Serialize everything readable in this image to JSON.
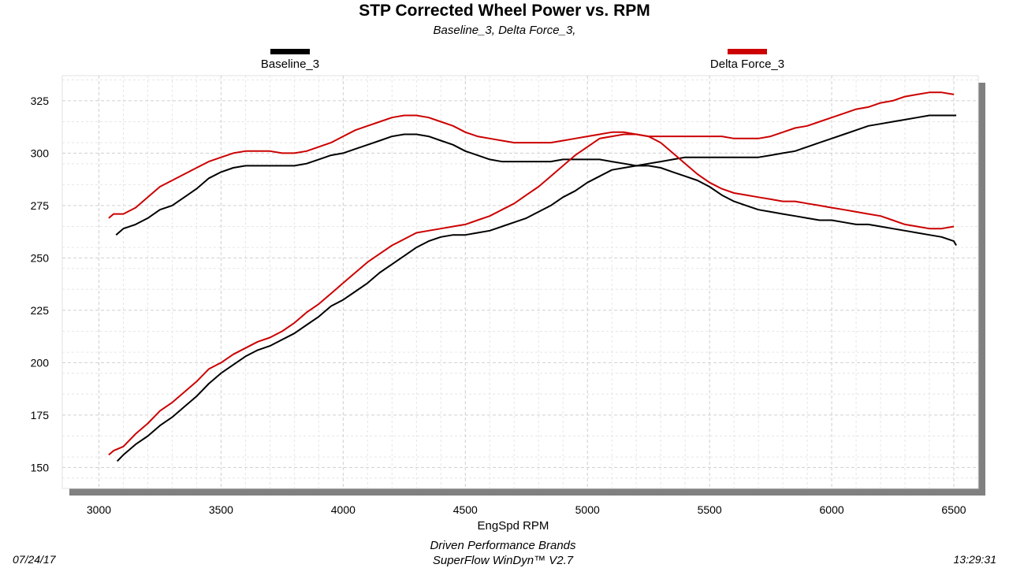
{
  "chart_data": {
    "type": "line",
    "title": "STP Corrected Wheel Power vs. RPM",
    "subtitle": "Baseline_3, Delta Force_3,",
    "xlabel": "EngSpd  RPM",
    "ylabel": "",
    "xlim": [
      2850,
      6600
    ],
    "ylim": [
      140,
      337
    ],
    "xticks": [
      "3000",
      "3500",
      "4000",
      "4500",
      "5000",
      "5500",
      "6000",
      "6500"
    ],
    "yticks": [
      "150",
      "175",
      "200",
      "225",
      "250",
      "275",
      "300",
      "325"
    ],
    "grid": true,
    "legend_position": "top",
    "series": [
      {
        "name": "Baseline_3",
        "measure": "power",
        "color": "#000000",
        "x": [
          3070,
          3100,
          3150,
          3200,
          3250,
          3300,
          3350,
          3400,
          3450,
          3500,
          3550,
          3600,
          3650,
          3700,
          3750,
          3800,
          3850,
          3900,
          3950,
          4000,
          4050,
          4100,
          4150,
          4200,
          4250,
          4300,
          4350,
          4400,
          4450,
          4500,
          4550,
          4600,
          4650,
          4700,
          4750,
          4800,
          4850,
          4900,
          4950,
          5000,
          5050,
          5100,
          5150,
          5200,
          5250,
          5300,
          5350,
          5400,
          5450,
          5500,
          5550,
          5600,
          5650,
          5700,
          5750,
          5800,
          5850,
          5900,
          5950,
          6000,
          6050,
          6100,
          6150,
          6200,
          6250,
          6300,
          6350,
          6400,
          6450,
          6500,
          6510
        ],
        "y": [
          261,
          264,
          266,
          269,
          273,
          275,
          279,
          283,
          288,
          291,
          293,
          294,
          294,
          294,
          294,
          294,
          295,
          297,
          299,
          300,
          302,
          304,
          306,
          308,
          309,
          309,
          308,
          306,
          304,
          301,
          299,
          297,
          296,
          296,
          296,
          296,
          296,
          297,
          297,
          297,
          297,
          296,
          295,
          294,
          295,
          296,
          297,
          298,
          298,
          298,
          298,
          298,
          298,
          298,
          299,
          300,
          301,
          303,
          305,
          307,
          309,
          311,
          313,
          314,
          315,
          316,
          317,
          318,
          318,
          318,
          318
        ]
      },
      {
        "name": "Delta Force_3",
        "measure": "power",
        "color": "#cc0000",
        "x": [
          3040,
          3060,
          3100,
          3150,
          3200,
          3250,
          3300,
          3350,
          3400,
          3450,
          3500,
          3550,
          3600,
          3650,
          3700,
          3750,
          3800,
          3850,
          3900,
          3950,
          4000,
          4050,
          4100,
          4150,
          4200,
          4250,
          4300,
          4350,
          4400,
          4450,
          4500,
          4550,
          4600,
          4650,
          4700,
          4750,
          4800,
          4850,
          4900,
          4950,
          5000,
          5050,
          5100,
          5150,
          5200,
          5250,
          5300,
          5350,
          5400,
          5450,
          5500,
          5550,
          5600,
          5650,
          5700,
          5750,
          5800,
          5850,
          5900,
          5950,
          6000,
          6050,
          6100,
          6150,
          6200,
          6250,
          6300,
          6350,
          6400,
          6450,
          6500
        ],
        "y": [
          269,
          271,
          271,
          274,
          279,
          284,
          287,
          290,
          293,
          296,
          298,
          300,
          301,
          301,
          301,
          300,
          300,
          301,
          303,
          305,
          308,
          311,
          313,
          315,
          317,
          318,
          318,
          317,
          315,
          313,
          310,
          308,
          307,
          306,
          305,
          305,
          305,
          305,
          306,
          307,
          308,
          309,
          310,
          310,
          309,
          308,
          308,
          308,
          308,
          308,
          308,
          308,
          307,
          307,
          307,
          308,
          310,
          312,
          313,
          315,
          317,
          319,
          321,
          322,
          324,
          325,
          327,
          328,
          329,
          329,
          328
        ]
      },
      {
        "name": "Baseline_3",
        "measure": "torque",
        "color": "#000000",
        "x": [
          3075,
          3100,
          3150,
          3200,
          3250,
          3300,
          3350,
          3400,
          3450,
          3500,
          3550,
          3600,
          3650,
          3700,
          3750,
          3800,
          3850,
          3900,
          3950,
          4000,
          4050,
          4100,
          4150,
          4200,
          4250,
          4300,
          4350,
          4400,
          4450,
          4500,
          4550,
          4600,
          4650,
          4700,
          4750,
          4800,
          4850,
          4900,
          4950,
          5000,
          5050,
          5100,
          5150,
          5200,
          5250,
          5300,
          5350,
          5400,
          5450,
          5500,
          5550,
          5600,
          5650,
          5700,
          5750,
          5800,
          5850,
          5900,
          5950,
          6000,
          6050,
          6100,
          6150,
          6200,
          6250,
          6300,
          6350,
          6400,
          6450,
          6500,
          6510
        ],
        "y": [
          153,
          156,
          161,
          165,
          170,
          174,
          179,
          184,
          190,
          195,
          199,
          203,
          206,
          208,
          211,
          214,
          218,
          222,
          227,
          230,
          234,
          238,
          243,
          247,
          251,
          255,
          258,
          260,
          261,
          261,
          262,
          263,
          265,
          267,
          269,
          272,
          275,
          279,
          282,
          286,
          289,
          292,
          293,
          294,
          294,
          293,
          291,
          289,
          287,
          284,
          280,
          277,
          275,
          273,
          272,
          271,
          270,
          269,
          268,
          268,
          267,
          266,
          266,
          265,
          264,
          263,
          262,
          261,
          260,
          258,
          256
        ]
      },
      {
        "name": "Delta Force_3",
        "measure": "torque",
        "color": "#cc0000",
        "x": [
          3040,
          3060,
          3100,
          3150,
          3200,
          3250,
          3300,
          3350,
          3400,
          3450,
          3500,
          3550,
          3600,
          3650,
          3700,
          3750,
          3800,
          3850,
          3900,
          3950,
          4000,
          4050,
          4100,
          4150,
          4200,
          4250,
          4300,
          4350,
          4400,
          4450,
          4500,
          4550,
          4600,
          4650,
          4700,
          4750,
          4800,
          4850,
          4900,
          4950,
          5000,
          5050,
          5100,
          5150,
          5200,
          5250,
          5300,
          5350,
          5400,
          5450,
          5500,
          5550,
          5600,
          5650,
          5700,
          5750,
          5800,
          5850,
          5900,
          5950,
          6000,
          6050,
          6100,
          6150,
          6200,
          6250,
          6300,
          6350,
          6400,
          6450,
          6500
        ],
        "y": [
          156,
          158,
          160,
          166,
          171,
          177,
          181,
          186,
          191,
          197,
          200,
          204,
          207,
          210,
          212,
          215,
          219,
          224,
          228,
          233,
          238,
          243,
          248,
          252,
          256,
          259,
          262,
          263,
          264,
          265,
          266,
          268,
          270,
          273,
          276,
          280,
          284,
          289,
          294,
          299,
          303,
          307,
          308,
          309,
          309,
          308,
          305,
          300,
          295,
          290,
          286,
          283,
          281,
          280,
          279,
          278,
          277,
          277,
          276,
          275,
          274,
          273,
          272,
          271,
          270,
          268,
          266,
          265,
          264,
          264,
          265
        ]
      }
    ]
  },
  "footer": {
    "date": "07/24/17",
    "time": "13:29:31",
    "company": "Driven Performance Brands",
    "software": "SuperFlow WinDyn™  V2.7"
  }
}
